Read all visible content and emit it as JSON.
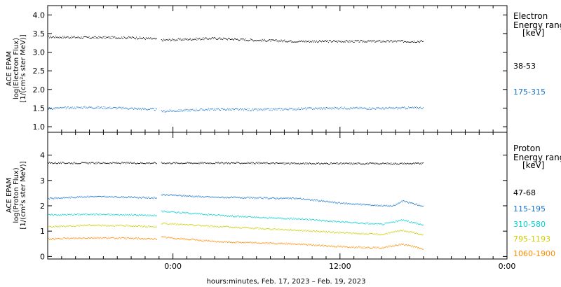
{
  "xlabel": "hours:minutes, Feb. 17, 2023 – Feb. 19, 2023",
  "x_ticks": [
    "0:00",
    "12:00",
    "0:00"
  ],
  "panels": [
    {
      "id": "electron",
      "ylabel_lines": [
        "ACE EPAM",
        "log(Electron Flux)",
        "[1/(cm²s ster MeV)]"
      ],
      "y_ticks": [
        "1.0",
        "1.5",
        "2.0",
        "2.5",
        "3.0",
        "3.5",
        "4.0"
      ],
      "legend_title": [
        "Electron",
        "Energy range",
        "[keV]"
      ]
    },
    {
      "id": "proton",
      "ylabel_lines": [
        "ACE EPAM",
        "log(Proton Flux)",
        "[1/(cm²s ster MeV)]"
      ],
      "y_ticks": [
        "0",
        "1",
        "2",
        "3",
        "4"
      ],
      "legend_title": [
        "Proton",
        "Energy range",
        "[keV]"
      ]
    }
  ],
  "chart_data": [
    {
      "type": "scatter",
      "title": "",
      "xlabel": "hours:minutes, Feb. 17, 2023 – Feb. 19, 2023",
      "ylabel": "ACE EPAM log(Electron Flux) [1/(cm²s ster MeV)]",
      "xlim": [
        -9,
        24
      ],
      "ylim": [
        0.85,
        4.25
      ],
      "x_ticks": [
        0,
        12,
        24
      ],
      "x_tick_labels": [
        "0:00",
        "12:00",
        "0:00"
      ],
      "y_ticks": [
        1.0,
        1.5,
        2.0,
        2.5,
        3.0,
        3.5,
        4.0
      ],
      "legend_placement": "right",
      "data_gap": [
        -1.2,
        -0.9
      ],
      "data_end": 18.0,
      "series": [
        {
          "name": "38-53",
          "color": "#000000",
          "x": [
            -9,
            -6,
            -3,
            -1.2,
            -0.9,
            3,
            6,
            9,
            12,
            15,
            18
          ],
          "values": [
            3.42,
            3.4,
            3.4,
            3.36,
            3.33,
            3.38,
            3.33,
            3.3,
            3.3,
            3.3,
            3.3
          ]
        },
        {
          "name": "175-315",
          "color": "#1874cd",
          "x": [
            -9,
            -6,
            -3,
            -1.2,
            -0.9,
            3,
            6,
            9,
            12,
            15,
            18
          ],
          "values": [
            1.5,
            1.53,
            1.5,
            1.47,
            1.42,
            1.48,
            1.46,
            1.49,
            1.51,
            1.5,
            1.52
          ]
        }
      ]
    },
    {
      "type": "scatter",
      "title": "",
      "xlabel": "hours:minutes, Feb. 17, 2023 – Feb. 19, 2023",
      "ylabel": "ACE EPAM log(Proton Flux) [1/(cm²s ster MeV)]",
      "xlim": [
        -9,
        24
      ],
      "ylim": [
        -0.1,
        4.9
      ],
      "x_ticks": [
        0,
        12,
        24
      ],
      "x_tick_labels": [
        "0:00",
        "12:00",
        "0:00"
      ],
      "y_ticks": [
        0,
        1,
        2,
        3,
        4
      ],
      "legend_placement": "right",
      "data_gap": [
        -1.2,
        -0.9
      ],
      "data_end": 18.0,
      "series": [
        {
          "name": "47-68",
          "color": "#000000",
          "x": [
            -9,
            -6,
            -3,
            -1.2,
            -0.9,
            3,
            6,
            9,
            12,
            15,
            18
          ],
          "values": [
            3.7,
            3.7,
            3.7,
            3.7,
            3.7,
            3.7,
            3.7,
            3.68,
            3.68,
            3.68,
            3.68
          ]
        },
        {
          "name": "115-195",
          "color": "#1874cd",
          "x": [
            -9,
            -6,
            -3,
            -1.2,
            -0.9,
            3,
            6,
            9,
            12,
            14,
            15.8,
            16.5,
            18
          ],
          "values": [
            2.3,
            2.38,
            2.35,
            2.32,
            2.45,
            2.35,
            2.32,
            2.3,
            2.12,
            2.05,
            2.0,
            2.2,
            2.0
          ]
        },
        {
          "name": "310-580",
          "color": "#00ced1",
          "x": [
            -9,
            -6,
            -3,
            -1.2,
            -0.9,
            3,
            6,
            9,
            12,
            15,
            16.5,
            18
          ],
          "values": [
            1.65,
            1.68,
            1.65,
            1.63,
            1.8,
            1.65,
            1.55,
            1.5,
            1.38,
            1.28,
            1.45,
            1.25
          ]
        },
        {
          "name": "795-1193",
          "color": "#cdcd00",
          "x": [
            -9,
            -6,
            -3,
            -1.2,
            -0.9,
            3,
            6,
            9,
            12,
            15,
            16.5,
            18
          ],
          "values": [
            1.18,
            1.25,
            1.22,
            1.18,
            1.32,
            1.2,
            1.12,
            1.05,
            0.95,
            0.88,
            1.05,
            0.85
          ]
        },
        {
          "name": "1060-1900",
          "color": "#ff8c00",
          "x": [
            -9,
            -6,
            -3,
            -1.2,
            -0.9,
            3,
            6,
            9,
            12,
            15,
            16.5,
            18
          ],
          "values": [
            0.7,
            0.75,
            0.73,
            0.7,
            0.78,
            0.6,
            0.55,
            0.5,
            0.4,
            0.35,
            0.5,
            0.3
          ]
        }
      ]
    }
  ]
}
